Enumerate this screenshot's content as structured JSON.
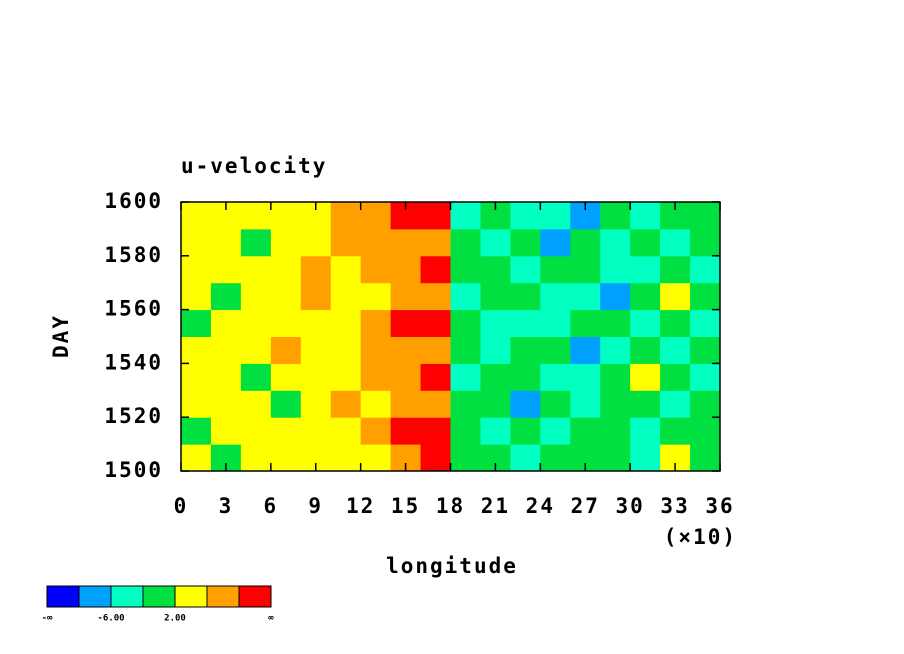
{
  "chart_data": {
    "type": "heatmap",
    "title": "u-velocity",
    "x_label": "longitude",
    "y_label": "DAY",
    "x_scale_label": "(×10)",
    "xlim": [
      0,
      360
    ],
    "ylim": [
      1500,
      1600
    ],
    "xticks": [
      {
        "value": 0,
        "label": "0"
      },
      {
        "value": 30,
        "label": "3"
      },
      {
        "value": 60,
        "label": "6"
      },
      {
        "value": 90,
        "label": "9"
      },
      {
        "value": 120,
        "label": "12"
      },
      {
        "value": 150,
        "label": "15"
      },
      {
        "value": 180,
        "label": "18"
      },
      {
        "value": 210,
        "label": "21"
      },
      {
        "value": 240,
        "label": "24"
      },
      {
        "value": 270,
        "label": "27"
      },
      {
        "value": 300,
        "label": "30"
      },
      {
        "value": 330,
        "label": "33"
      },
      {
        "value": 360,
        "label": "36"
      }
    ],
    "yticks": [
      1500,
      1520,
      1540,
      1560,
      1580,
      1600
    ],
    "levels": [
      -10,
      -6,
      -2,
      2,
      6,
      10
    ],
    "colors": [
      "#0000ff",
      "#00a0ff",
      "#00ffc0",
      "#00e040",
      "#ffff00",
      "#ffa000",
      "#ff0000"
    ],
    "colorbar_labels": [
      {
        "value": -6,
        "label": "-6.00"
      },
      {
        "value": 2,
        "label": "2.00"
      }
    ],
    "colorbar_end_labels": [
      "-∞",
      "∞"
    ],
    "z": [
      [
        3,
        1,
        4,
        2,
        3,
        5,
        5,
        7,
        11,
        -1,
        -2,
        -3,
        -1,
        -2,
        0,
        -3,
        3,
        -2
      ],
      [
        1,
        4,
        2,
        5,
        3,
        4,
        7,
        11,
        12,
        0,
        -3,
        -2,
        -4,
        -1,
        -2,
        -3,
        -1,
        -2
      ],
      [
        4,
        2,
        3,
        1,
        5,
        6,
        5,
        8,
        9,
        -2,
        -1,
        -7,
        -2,
        -3,
        1,
        -2,
        -3,
        0
      ],
      [
        2,
        5,
        1,
        3,
        4,
        5,
        6,
        7,
        10,
        -3,
        -2,
        -1,
        -3,
        -4,
        -2,
        3,
        -1,
        -3
      ],
      [
        3,
        2,
        4,
        6,
        3,
        5,
        7,
        9,
        8,
        -1,
        -4,
        -2,
        -1,
        -7,
        -4,
        -2,
        -3,
        -1
      ],
      [
        1,
        3,
        2,
        4,
        5,
        3,
        6,
        11,
        12,
        -2,
        -3,
        -5,
        -3,
        -2,
        -1,
        -4,
        -2,
        -3
      ],
      [
        4,
        1,
        3,
        2,
        6,
        4,
        5,
        8,
        7,
        -3,
        -1,
        -2,
        -4,
        -3,
        -7,
        -2,
        4,
        -1
      ],
      [
        2,
        4,
        5,
        3,
        7,
        5,
        6,
        9,
        12,
        -1,
        -2,
        -4,
        -2,
        -1,
        -3,
        -4,
        -2,
        -3
      ],
      [
        3,
        2,
        1,
        5,
        4,
        6,
        7,
        8,
        6,
        -2,
        -3,
        -1,
        -7,
        -2,
        -3,
        -1,
        -3,
        -2
      ],
      [
        2,
        3,
        4,
        2,
        5,
        7,
        8,
        10,
        11,
        -3,
        -2,
        -4,
        -3,
        -7,
        -2,
        -3,
        -1,
        -2
      ]
    ]
  }
}
